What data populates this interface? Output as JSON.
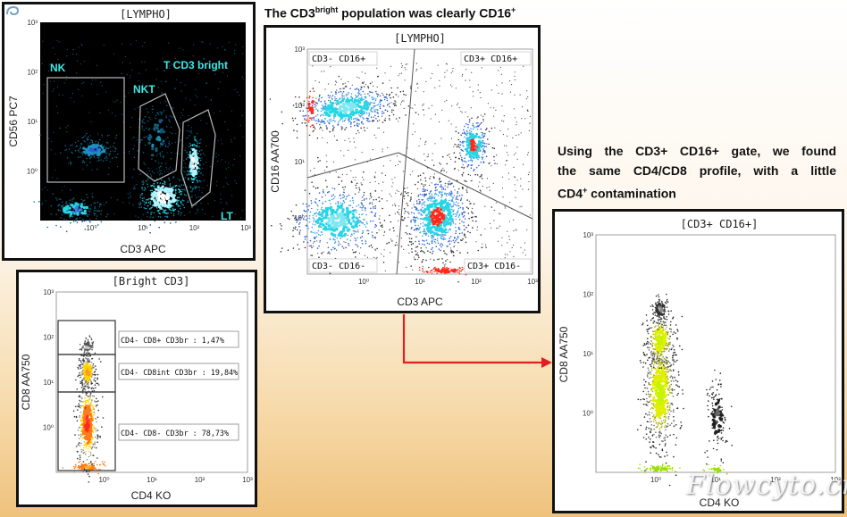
{
  "captions": {
    "main_prefix": "The CD3",
    "main_sup": "bright",
    "main_suffix": " population was clearly CD16",
    "main_sup2": "+",
    "right_line1": "Using the CD3+ CD16+ gate, we found",
    "right_line2": "the same CD4/CD8 profile, with a little",
    "right_line3_prefix": "CD4",
    "right_line3_sup": "+",
    "right_line3_suffix": " contamination"
  },
  "watermark": "Flowcyto.cn",
  "colors": {
    "accent_arrow": "#e02020",
    "gate_dark_text": "#3ee8e8",
    "density_high": "#ff2a1a",
    "density_mid": "#ffd400",
    "density_low": "#2a5bd7",
    "density_cyan": "#28d6e6"
  },
  "chart_data": [
    {
      "type": "scatter",
      "id": "lympho-cd56-cd3",
      "title": "[LYMPHO]",
      "xlabel": "CD3 APC",
      "ylabel": "CD56 PC7",
      "xscale": "log",
      "yscale": "log",
      "xlim": [
        0.1,
        1000
      ],
      "ylim": [
        0.1,
        1000
      ],
      "xticks": [
        "10⁰",
        "10¹",
        "10²",
        "10³"
      ],
      "yticks": [
        "10⁰",
        "10¹",
        "10²",
        "10³"
      ],
      "gates": [
        {
          "name": "NK"
        },
        {
          "name": "NKT"
        },
        {
          "name": "T CD3 bright"
        },
        {
          "name": "LT"
        }
      ]
    },
    {
      "type": "scatter",
      "id": "bright-cd3-cd8-cd4",
      "title": "[Bright CD3]",
      "xlabel": "CD4 KO",
      "ylabel": "CD8 AA750",
      "xscale": "log",
      "yscale": "log",
      "xlim": [
        0.1,
        1000
      ],
      "ylim": [
        0.1,
        1000
      ],
      "xticks": [
        "10⁰",
        "10¹",
        "10²",
        "10³"
      ],
      "yticks": [
        "10⁰",
        "10¹",
        "10²",
        "10³"
      ],
      "gates": [
        {
          "name": "CD4- CD8+ CD3br",
          "percent": 1.47,
          "label": "CD4- CD8+ CD3br : 1,47%"
        },
        {
          "name": "CD4- CD8int CD3br",
          "percent": 19.84,
          "label": "CD4- CD8int CD3br : 19,84%"
        },
        {
          "name": "CD4- CD8- CD3br",
          "percent": 78.73,
          "label": "CD4- CD8- CD3br : 78,73%"
        }
      ]
    },
    {
      "type": "scatter",
      "id": "lympho-cd16-cd3",
      "title": "[LYMPHO]",
      "xlabel": "CD3 APC",
      "ylabel": "CD16 AA700",
      "xscale": "log",
      "yscale": "log",
      "xlim": [
        0.1,
        1000
      ],
      "ylim": [
        0.1,
        1000
      ],
      "xticks": [
        "10⁰",
        "10¹",
        "10²",
        "10³"
      ],
      "yticks": [
        "10⁰",
        "10¹",
        "10²",
        "10³"
      ],
      "quadrants": [
        "CD3- CD16+",
        "CD3+ CD16+",
        "CD3- CD16-",
        "CD3+ CD16-"
      ]
    },
    {
      "type": "scatter",
      "id": "cd3-cd16-cd8-cd4",
      "title": "[CD3+ CD16+]",
      "xlabel": "CD4 KO",
      "ylabel": "CD8 AA750",
      "xscale": "log",
      "yscale": "log",
      "xlim": [
        0.1,
        1000
      ],
      "ylim": [
        0.1,
        1000
      ],
      "xticks": [
        "10⁰",
        "10¹",
        "10²",
        "10³"
      ],
      "yticks": [
        "10⁰",
        "10¹",
        "10²",
        "10³"
      ]
    }
  ]
}
